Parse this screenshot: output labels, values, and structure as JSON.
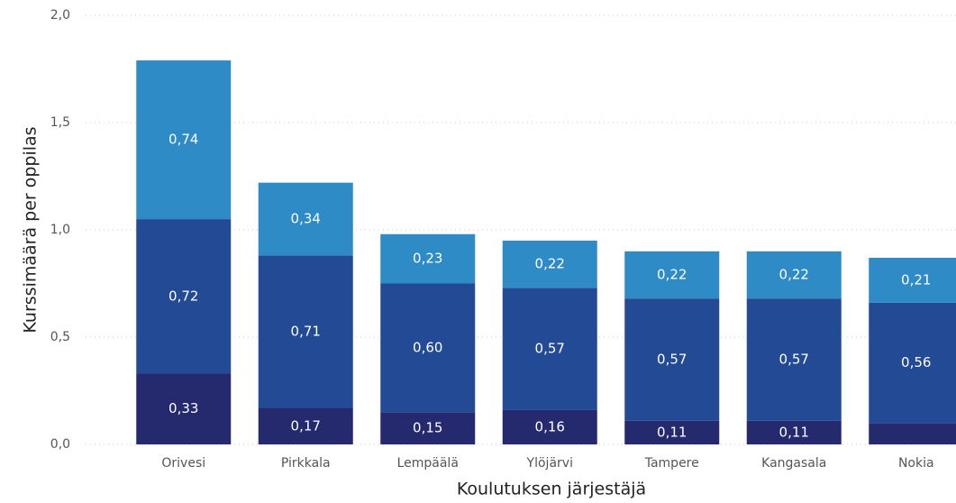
{
  "chart_data": {
    "type": "stacked_bar",
    "xlabel": "Koulutuksen järjestäjä",
    "ylabel": "Kurssimäärä per oppilas",
    "categories": [
      "Orivesi",
      "Pirkkala",
      "Lempäälä",
      "Ylöjärvi",
      "Tampere",
      "Kangasala",
      "Nokia"
    ],
    "series": [
      {
        "color": "#252a6e",
        "values": [
          0.33,
          0.17,
          0.15,
          0.16,
          0.11,
          0.11,
          0.1
        ],
        "value_labels": [
          "0,33",
          "0,17",
          "0,15",
          "0,16",
          "0,11",
          "0,11",
          null
        ]
      },
      {
        "color": "#234a94",
        "values": [
          0.72,
          0.71,
          0.6,
          0.57,
          0.57,
          0.57,
          0.56
        ],
        "value_labels": [
          "0,72",
          "0,71",
          "0,60",
          "0,57",
          "0,57",
          "0,57",
          "0,56"
        ]
      },
      {
        "color": "#2f8bc6",
        "values": [
          0.74,
          0.34,
          0.23,
          0.22,
          0.22,
          0.22,
          0.21
        ],
        "value_labels": [
          "0,74",
          "0,34",
          "0,23",
          "0,22",
          "0,22",
          "0,22",
          "0,21"
        ]
      }
    ],
    "ylim": [
      0,
      2
    ],
    "yticks": [
      {
        "value": 0,
        "label": "0,0"
      },
      {
        "value": 0.5,
        "label": "0,5"
      },
      {
        "value": 1,
        "label": "1,0"
      },
      {
        "value": 1.5,
        "label": "1,5"
      },
      {
        "value": 2,
        "label": "2,0"
      }
    ],
    "grid": true
  }
}
